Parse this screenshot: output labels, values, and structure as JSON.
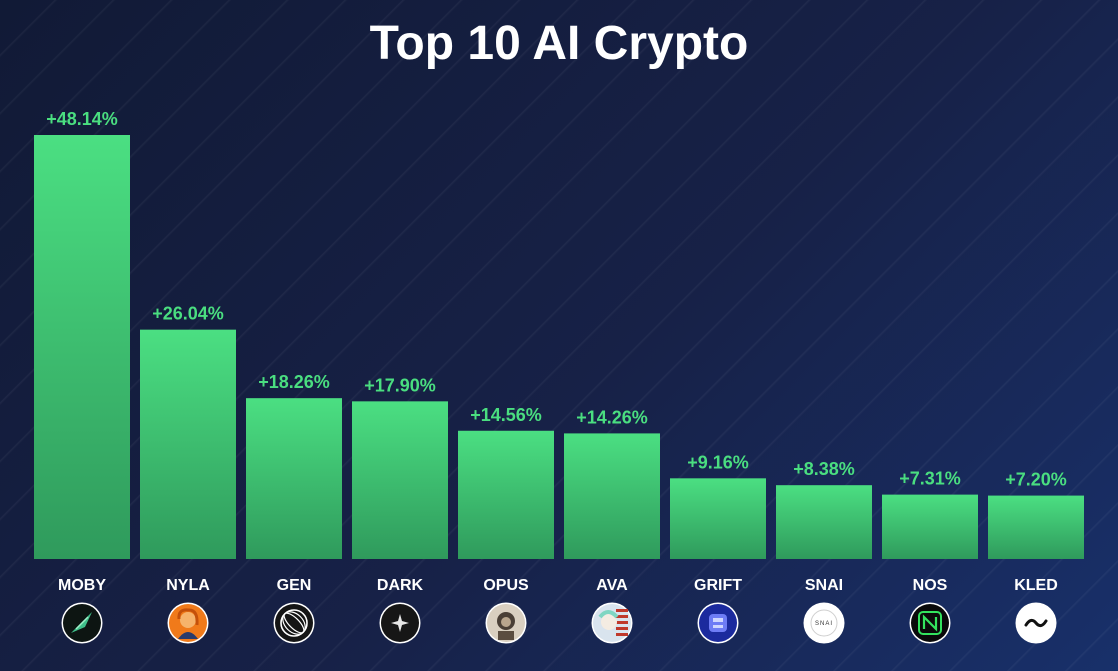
{
  "chart_data": {
    "type": "bar",
    "title": "Top 10 AI Crypto",
    "categories": [
      "MOBY",
      "NYLA",
      "GEN",
      "DARK",
      "OPUS",
      "AVA",
      "GRIFT",
      "SNAI",
      "NOS",
      "KLED"
    ],
    "values": [
      48.14,
      26.04,
      18.26,
      17.9,
      14.56,
      14.26,
      9.16,
      8.38,
      7.31,
      7.2
    ],
    "value_labels": [
      "+48.14%",
      "+26.04%",
      "+18.26%",
      "+17.90%",
      "+14.56%",
      "+14.26%",
      "+9.16%",
      "+8.38%",
      "+7.31%",
      "+7.20%"
    ],
    "unit": "%",
    "ylim": [
      0,
      48.14
    ],
    "grid": false,
    "legend": "none",
    "icons": [
      "moby-icon",
      "nyla-icon",
      "gen-icon",
      "dark-icon",
      "opus-icon",
      "ava-icon",
      "grift-icon",
      "snai-icon",
      "nos-icon",
      "kled-icon"
    ],
    "snai_icon_text": "SNAI"
  },
  "colors": {
    "bar_top": "#4bdf82",
    "bar_bottom": "#2f9a5c",
    "value_label": "#4ade80",
    "background": "#141d3c"
  }
}
